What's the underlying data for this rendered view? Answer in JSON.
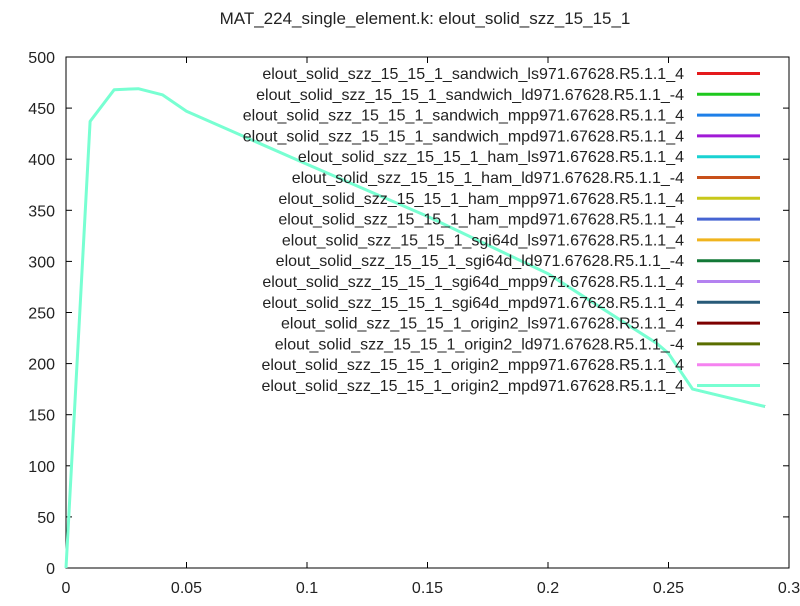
{
  "chart_data": {
    "type": "line",
    "title": "MAT_224_single_element.k: elout_solid_szz_15_15_1",
    "xlabel": "",
    "ylabel": "",
    "xlim": [
      0,
      0.3
    ],
    "ylim": [
      0,
      500
    ],
    "x_ticks": [
      0,
      0.05,
      0.1,
      0.15,
      0.2,
      0.25,
      0.3
    ],
    "x_tick_labels": [
      "0",
      "0.05",
      "0.1",
      "0.15",
      "0.2",
      "0.25",
      "0.3"
    ],
    "y_ticks": [
      0,
      50,
      100,
      150,
      200,
      250,
      300,
      350,
      400,
      450,
      500
    ],
    "y_tick_labels": [
      "0",
      "50",
      "100",
      "150",
      "200",
      "250",
      "300",
      "350",
      "400",
      "450",
      "500"
    ],
    "grid": false,
    "legend_position": "top-right",
    "x": [
      0,
      0.01,
      0.02,
      0.03,
      0.04,
      0.05,
      0.1,
      0.15,
      0.2,
      0.245,
      0.25,
      0.26,
      0.29
    ],
    "series": [
      {
        "name": "elout_solid_szz_15_15_1_sandwich_ls971.67628.R5.1.1_4",
        "color": "#e41a1c"
      },
      {
        "name": "elout_solid_szz_15_15_1_sandwich_ld971.67628.R5.1.1_-4",
        "color": "#1ec81e"
      },
      {
        "name": "elout_solid_szz_15_15_1_sandwich_mpp971.67628.R5.1.1_4",
        "color": "#1e7fe8"
      },
      {
        "name": "elout_solid_szz_15_15_1_sandwich_mpd971.67628.R5.1.1_4",
        "color": "#a11ad6"
      },
      {
        "name": "elout_solid_szz_15_15_1_ham_ls971.67628.R5.1.1_4",
        "color": "#19d2d2"
      },
      {
        "name": "elout_solid_szz_15_15_1_ham_ld971.67628.R5.1.1_-4",
        "color": "#c8501a"
      },
      {
        "name": "elout_solid_szz_15_15_1_ham_mpp971.67628.R5.1.1_4",
        "color": "#c8c81a"
      },
      {
        "name": "elout_solid_szz_15_15_1_ham_mpd971.67628.R5.1.1_4",
        "color": "#4664d2"
      },
      {
        "name": "elout_solid_szz_15_15_1_sgi64d_ls971.67628.R5.1.1_4",
        "color": "#f0b41e"
      },
      {
        "name": "elout_solid_szz_15_15_1_sgi64d_ld971.67628.R5.1.1_-4",
        "color": "#127837"
      },
      {
        "name": "elout_solid_szz_15_15_1_sgi64d_mpp971.67628.R5.1.1_4",
        "color": "#b482f0"
      },
      {
        "name": "elout_solid_szz_15_15_1_sgi64d_mpd971.67628.R5.1.1_4",
        "color": "#285a78"
      },
      {
        "name": "elout_solid_szz_15_15_1_origin2_ls971.67628.R5.1.1_4",
        "color": "#7d0000"
      },
      {
        "name": "elout_solid_szz_15_15_1_origin2_ld971.67628.R5.1.1_-4",
        "color": "#5a6e00"
      },
      {
        "name": "elout_solid_szz_15_15_1_origin2_mpp971.67628.R5.1.1_4",
        "color": "#f582f0"
      },
      {
        "name": "elout_solid_szz_15_15_1_origin2_mpd971.67628.R5.1.1_4",
        "color": "#78ffd2"
      }
    ],
    "values": [
      0,
      437,
      468,
      469,
      463,
      447,
      395,
      344,
      288,
      220,
      210,
      175,
      158
    ]
  }
}
